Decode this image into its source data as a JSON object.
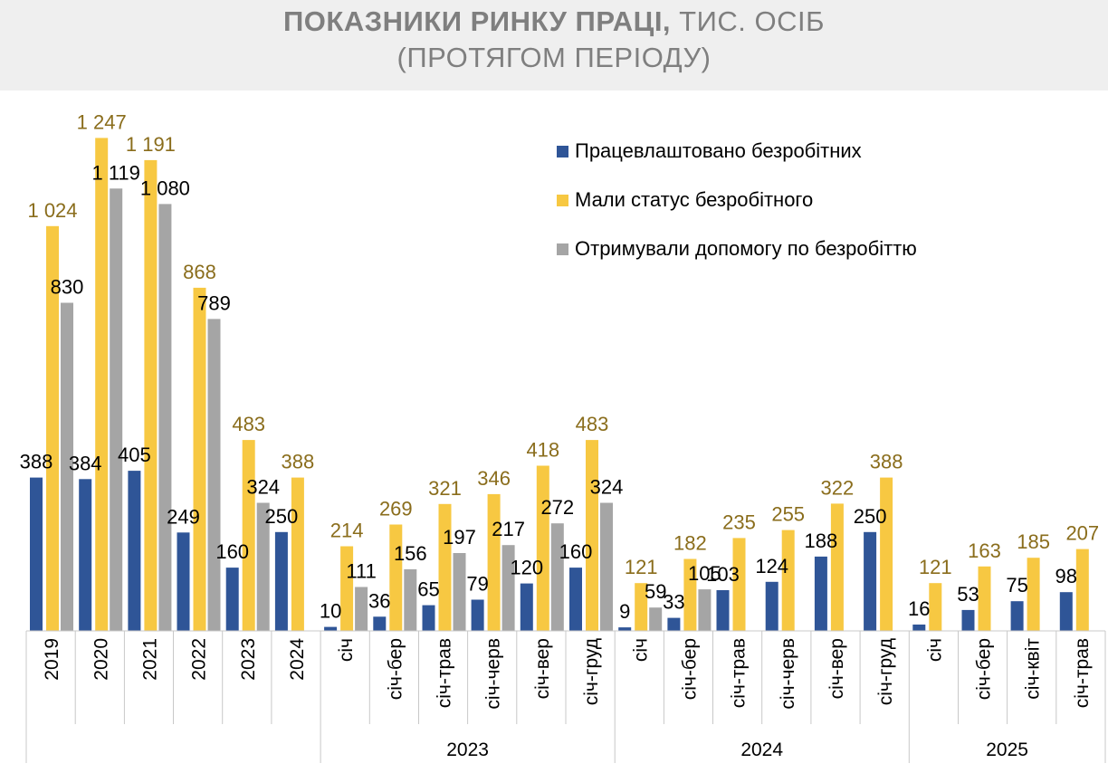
{
  "title": {
    "line1_bold": "ПОКАЗНИКИ РИНКУ ПРАЦІ,",
    "line1_rest": " ТИС. ОСІБ",
    "line2": "(ПРОТЯГОМ ПЕРІОДУ)"
  },
  "colors": {
    "employed": "#2f5597",
    "status": "#f7c842",
    "benefit": "#a5a5a5",
    "status_label": "#8a6d1c",
    "grid": "#c8c8c8",
    "title_bg": "#efefef"
  },
  "chart_data": {
    "type": "bar",
    "ylim": [
      0,
      1300
    ],
    "legend_position": "top-right",
    "groups": [
      {
        "label": "",
        "categories": [
          "2019",
          "2020",
          "2021",
          "2022",
          "2023",
          "2024"
        ]
      },
      {
        "label": "2023",
        "categories": [
          "січ",
          "січ-бер",
          "січ-трав",
          "січ-черв",
          "січ-вер",
          "січ-груд"
        ]
      },
      {
        "label": "2024",
        "categories": [
          "січ",
          "січ-бер",
          "січ-трав",
          "січ-черв",
          "січ-вер",
          "січ-груд"
        ]
      },
      {
        "label": "2025",
        "categories": [
          "січ",
          "січ-бер",
          "січ-квіт",
          "січ-трав"
        ]
      }
    ],
    "series": [
      {
        "name": "Працевлаштовано безробітних",
        "color_key": "employed",
        "values": [
          388,
          384,
          405,
          249,
          160,
          250,
          10,
          36,
          65,
          79,
          120,
          160,
          9,
          33,
          103,
          124,
          188,
          250,
          16,
          53,
          75,
          98
        ],
        "labels": [
          "388",
          "384",
          "405",
          "249",
          "160",
          "250",
          "10",
          "36",
          "65",
          "79",
          "120",
          "160",
          "9",
          "33",
          "103",
          "124",
          "188",
          "250",
          "16",
          "53",
          "75",
          "98"
        ]
      },
      {
        "name": "Мали статус безробітного",
        "color_key": "status",
        "values": [
          1024,
          1247,
          1191,
          868,
          483,
          388,
          214,
          269,
          321,
          346,
          418,
          483,
          121,
          182,
          235,
          255,
          322,
          388,
          121,
          163,
          185,
          207
        ],
        "labels": [
          "1 024",
          "1 247",
          "1 191",
          "868",
          "483",
          "388",
          "214",
          "269",
          "321",
          "346",
          "418",
          "483",
          "121",
          "182",
          "235",
          "255",
          "322",
          "388",
          "121",
          "163",
          "185",
          "207"
        ]
      },
      {
        "name": "Отримували допомогу по безробіттю",
        "color_key": "benefit",
        "values": [
          830,
          1119,
          1080,
          789,
          324,
          null,
          111,
          156,
          197,
          217,
          272,
          324,
          59,
          105,
          null,
          null,
          null,
          null,
          null,
          null,
          null,
          null
        ],
        "labels": [
          "830",
          "1 119",
          "1 080",
          "789",
          "324",
          null,
          "111",
          "156",
          "197",
          "217",
          "272",
          "324",
          "59",
          "105",
          null,
          null,
          null,
          null,
          null,
          null,
          null,
          null
        ]
      }
    ]
  }
}
